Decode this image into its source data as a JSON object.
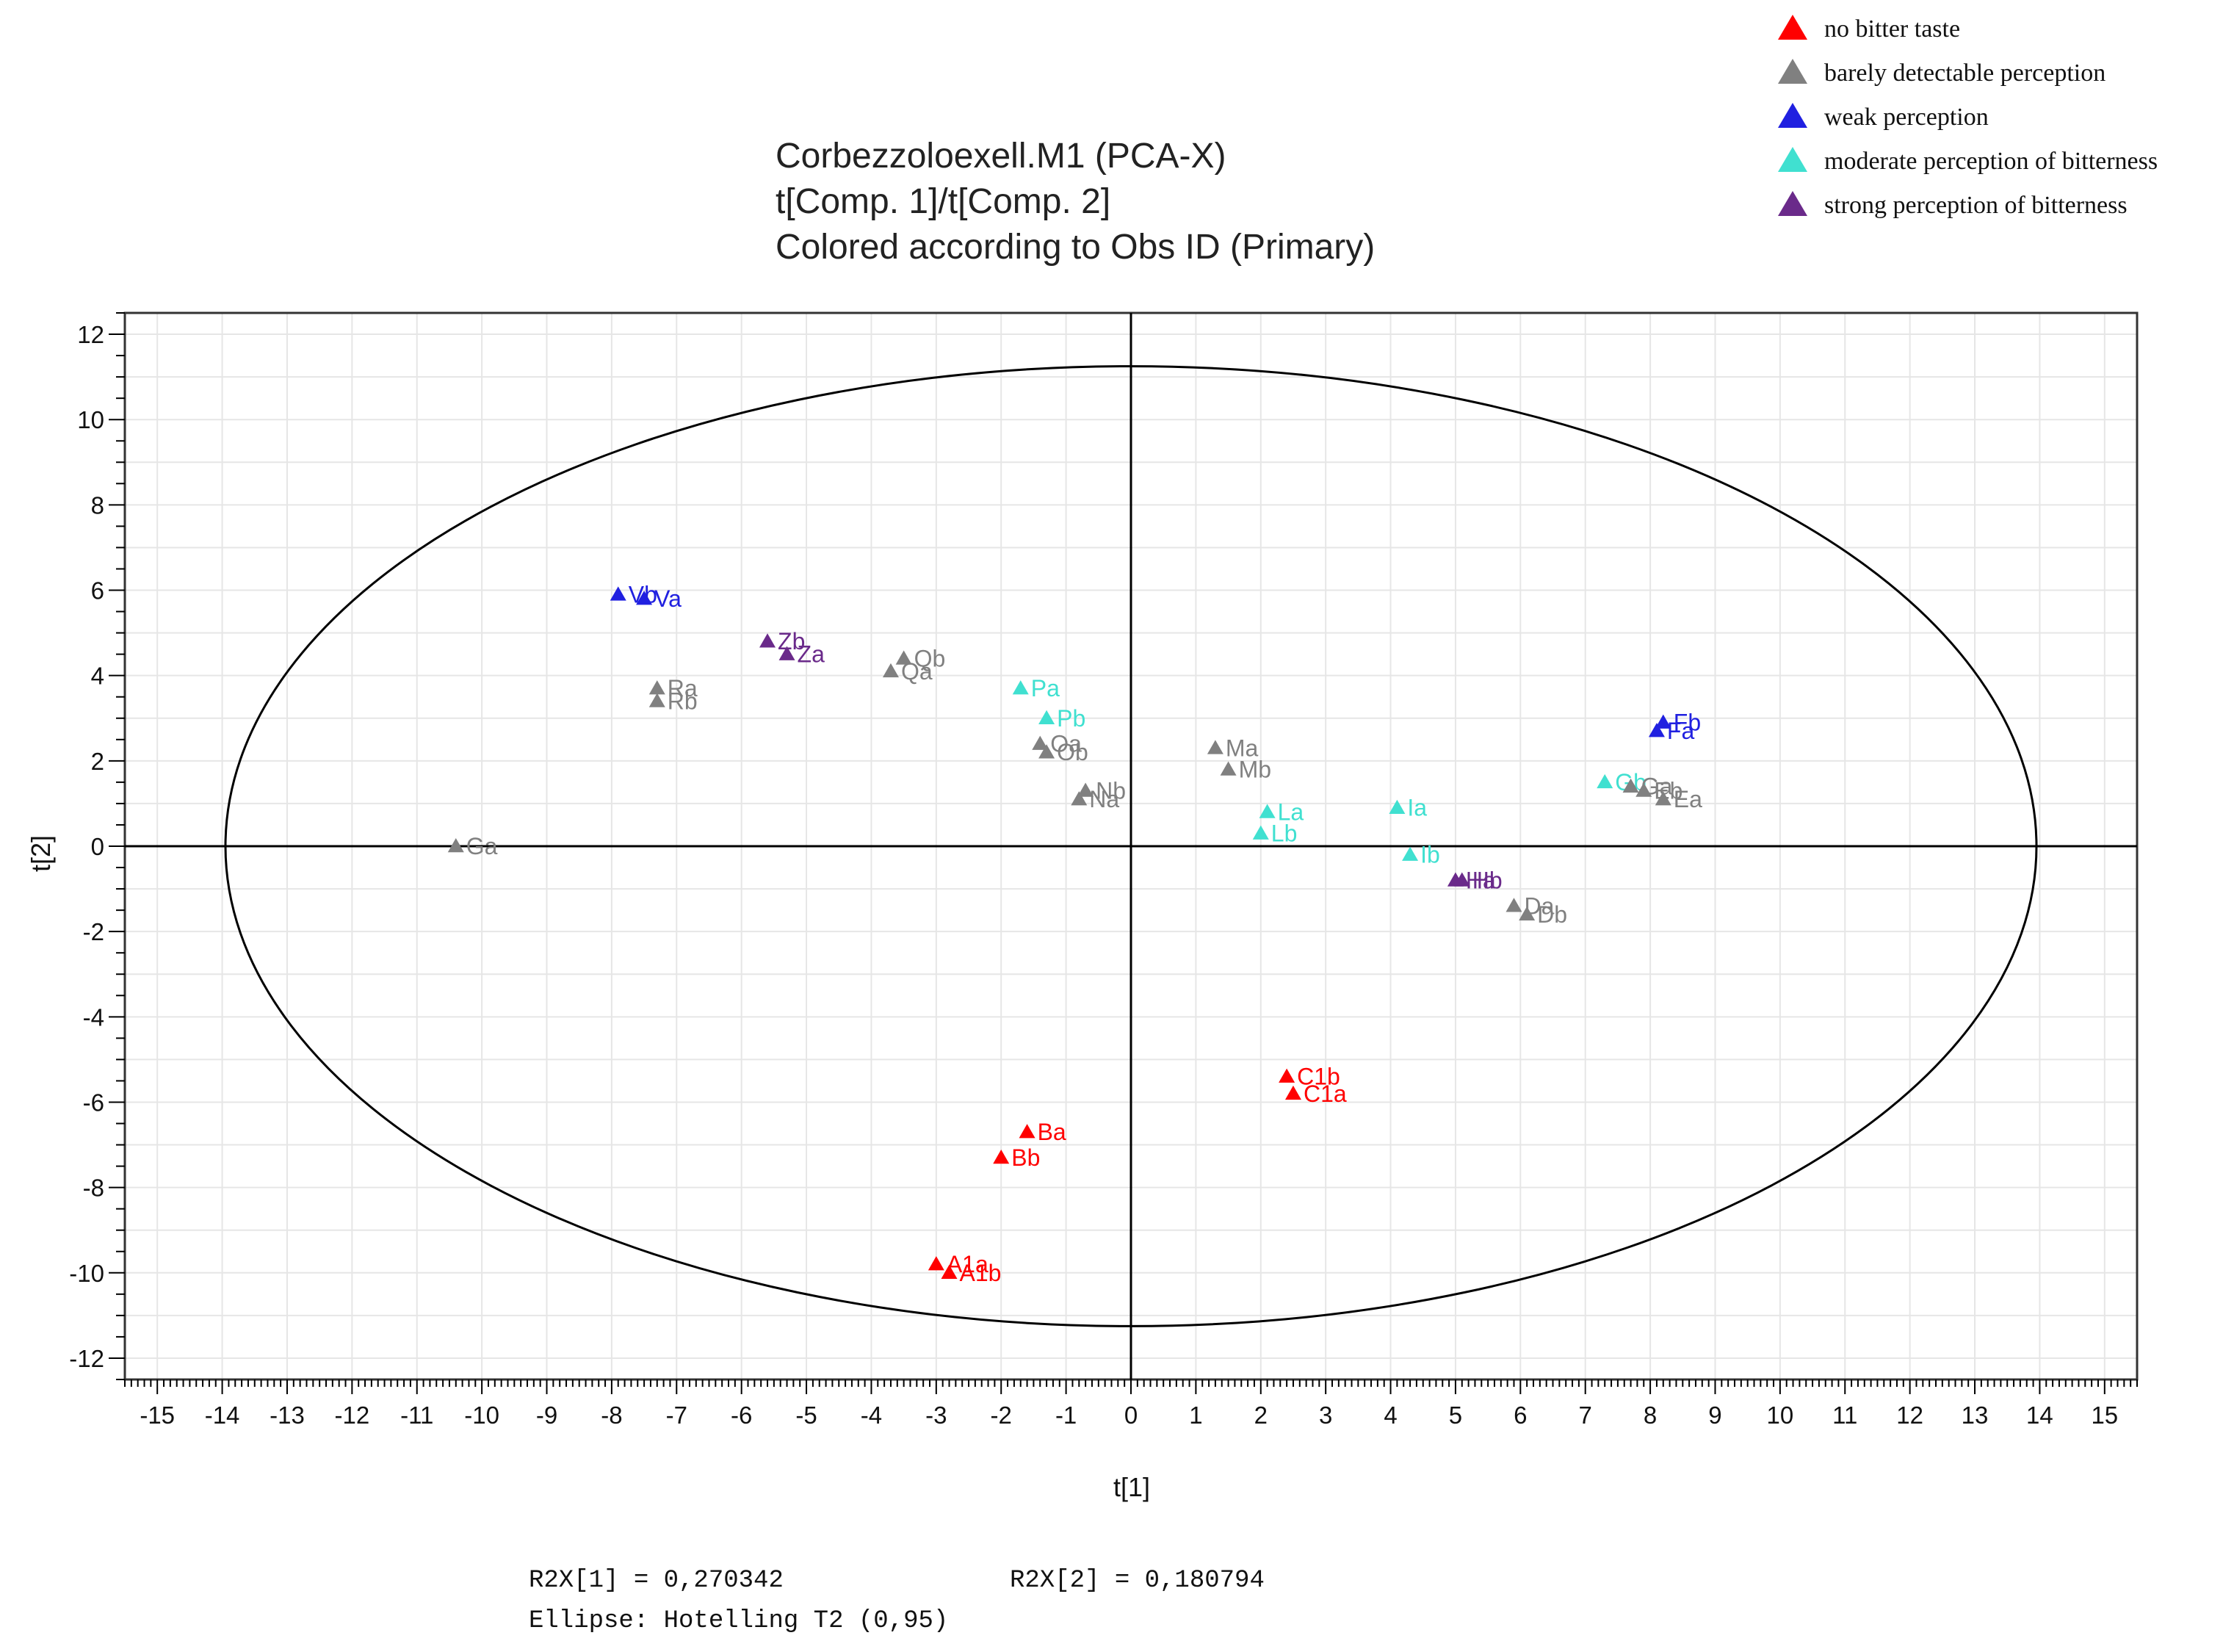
{
  "chart_data": {
    "type": "scatter",
    "title_lines": [
      "Corbezzoloexell.M1 (PCA-X)",
      "t[Comp. 1]/t[Comp. 2]",
      "Colored according to Obs ID (Primary)"
    ],
    "xlabel": "t[1]",
    "ylabel": "t[2]",
    "xlim": [
      -15.5,
      15.5
    ],
    "ylim": [
      -12.5,
      12.5
    ],
    "x_ticks": [
      -15,
      -14,
      -13,
      -12,
      -11,
      -10,
      -9,
      -8,
      -7,
      -6,
      -5,
      -4,
      -3,
      -2,
      -1,
      0,
      1,
      2,
      3,
      4,
      5,
      6,
      7,
      8,
      9,
      10,
      11,
      12,
      13,
      14,
      15
    ],
    "y_ticks": [
      -12,
      -10,
      -8,
      -6,
      -4,
      -2,
      0,
      2,
      4,
      6,
      8,
      10,
      12
    ],
    "ellipse": {
      "center": [
        0,
        0
      ],
      "semi_axis_x": 13.95,
      "semi_axis_y": 11.25,
      "label": "Ellipse: Hotelling T2 (0,95)"
    },
    "legend": [
      {
        "group": "no_bitter",
        "label": "no bitter taste",
        "color": "#ff0000"
      },
      {
        "group": "barely",
        "label": "barely detectable perception",
        "color": "#808080"
      },
      {
        "group": "weak",
        "label": "weak perception",
        "color": "#2020e0"
      },
      {
        "group": "moderate",
        "label": "moderate perception of bitterness",
        "color": "#40e0d0"
      },
      {
        "group": "strong",
        "label": "strong perception of bitterness",
        "color": "#6a2a8a"
      }
    ],
    "points": [
      {
        "label": "Vb",
        "x": -7.9,
        "y": 5.9,
        "group": "weak"
      },
      {
        "label": "Va",
        "x": -7.5,
        "y": 5.8,
        "group": "weak"
      },
      {
        "label": "Zb",
        "x": -5.6,
        "y": 4.8,
        "group": "strong"
      },
      {
        "label": "Za",
        "x": -5.3,
        "y": 4.5,
        "group": "strong"
      },
      {
        "label": "Ra",
        "x": -7.3,
        "y": 3.7,
        "group": "barely"
      },
      {
        "label": "Rb",
        "x": -7.3,
        "y": 3.4,
        "group": "barely"
      },
      {
        "label": "Qb",
        "x": -3.5,
        "y": 4.4,
        "group": "barely"
      },
      {
        "label": "Qa",
        "x": -3.7,
        "y": 4.1,
        "group": "barely"
      },
      {
        "label": "Pa",
        "x": -1.7,
        "y": 3.7,
        "group": "moderate"
      },
      {
        "label": "Pb",
        "x": -1.3,
        "y": 3.0,
        "group": "moderate"
      },
      {
        "label": "Oa",
        "x": -1.4,
        "y": 2.4,
        "group": "barely"
      },
      {
        "label": "Ob",
        "x": -1.3,
        "y": 2.2,
        "group": "barely"
      },
      {
        "label": "Nb",
        "x": -0.7,
        "y": 1.3,
        "group": "barely"
      },
      {
        "label": "Na",
        "x": -0.8,
        "y": 1.1,
        "group": "barely"
      },
      {
        "label": "Ga",
        "x": -10.4,
        "y": 0.0,
        "group": "barely"
      },
      {
        "label": "Ma",
        "x": 1.3,
        "y": 2.3,
        "group": "barely"
      },
      {
        "label": "Mb",
        "x": 1.5,
        "y": 1.8,
        "group": "barely"
      },
      {
        "label": "La",
        "x": 2.1,
        "y": 0.8,
        "group": "moderate"
      },
      {
        "label": "Lb",
        "x": 2.0,
        "y": 0.3,
        "group": "moderate"
      },
      {
        "label": "Ia",
        "x": 4.1,
        "y": 0.9,
        "group": "moderate"
      },
      {
        "label": "Ib",
        "x": 4.3,
        "y": -0.2,
        "group": "moderate"
      },
      {
        "label": "Ha",
        "x": 5.0,
        "y": -0.8,
        "group": "strong"
      },
      {
        "label": "Hb",
        "x": 5.1,
        "y": -0.8,
        "group": "strong"
      },
      {
        "label": "Da",
        "x": 5.9,
        "y": -1.4,
        "group": "barely"
      },
      {
        "label": "Db",
        "x": 6.1,
        "y": -1.6,
        "group": "barely"
      },
      {
        "label": "Gb",
        "x": 7.3,
        "y": 1.5,
        "group": "moderate"
      },
      {
        "label": "Ga",
        "x": 7.7,
        "y": 1.4,
        "group": "barely"
      },
      {
        "label": "Eb",
        "x": 7.9,
        "y": 1.3,
        "group": "barely"
      },
      {
        "label": "Ea",
        "x": 8.2,
        "y": 1.1,
        "group": "barely"
      },
      {
        "label": "Fb",
        "x": 8.2,
        "y": 2.9,
        "group": "weak"
      },
      {
        "label": "Fa",
        "x": 8.1,
        "y": 2.7,
        "group": "weak"
      },
      {
        "label": "C1b",
        "x": 2.4,
        "y": -5.4,
        "group": "no_bitter"
      },
      {
        "label": "C1a",
        "x": 2.5,
        "y": -5.8,
        "group": "no_bitter"
      },
      {
        "label": "Ba",
        "x": -1.6,
        "y": -6.7,
        "group": "no_bitter"
      },
      {
        "label": "Bb",
        "x": -2.0,
        "y": -7.3,
        "group": "no_bitter"
      },
      {
        "label": "A1a",
        "x": -3.0,
        "y": -9.8,
        "group": "no_bitter"
      },
      {
        "label": "A1b",
        "x": -2.8,
        "y": -10.0,
        "group": "no_bitter"
      }
    ],
    "footer": {
      "r2x1": "R2X[1] = 0,270342",
      "r2x2": "R2X[2] = 0,180794",
      "ellipse_note": "Ellipse: Hotelling T2 (0,95)"
    }
  }
}
